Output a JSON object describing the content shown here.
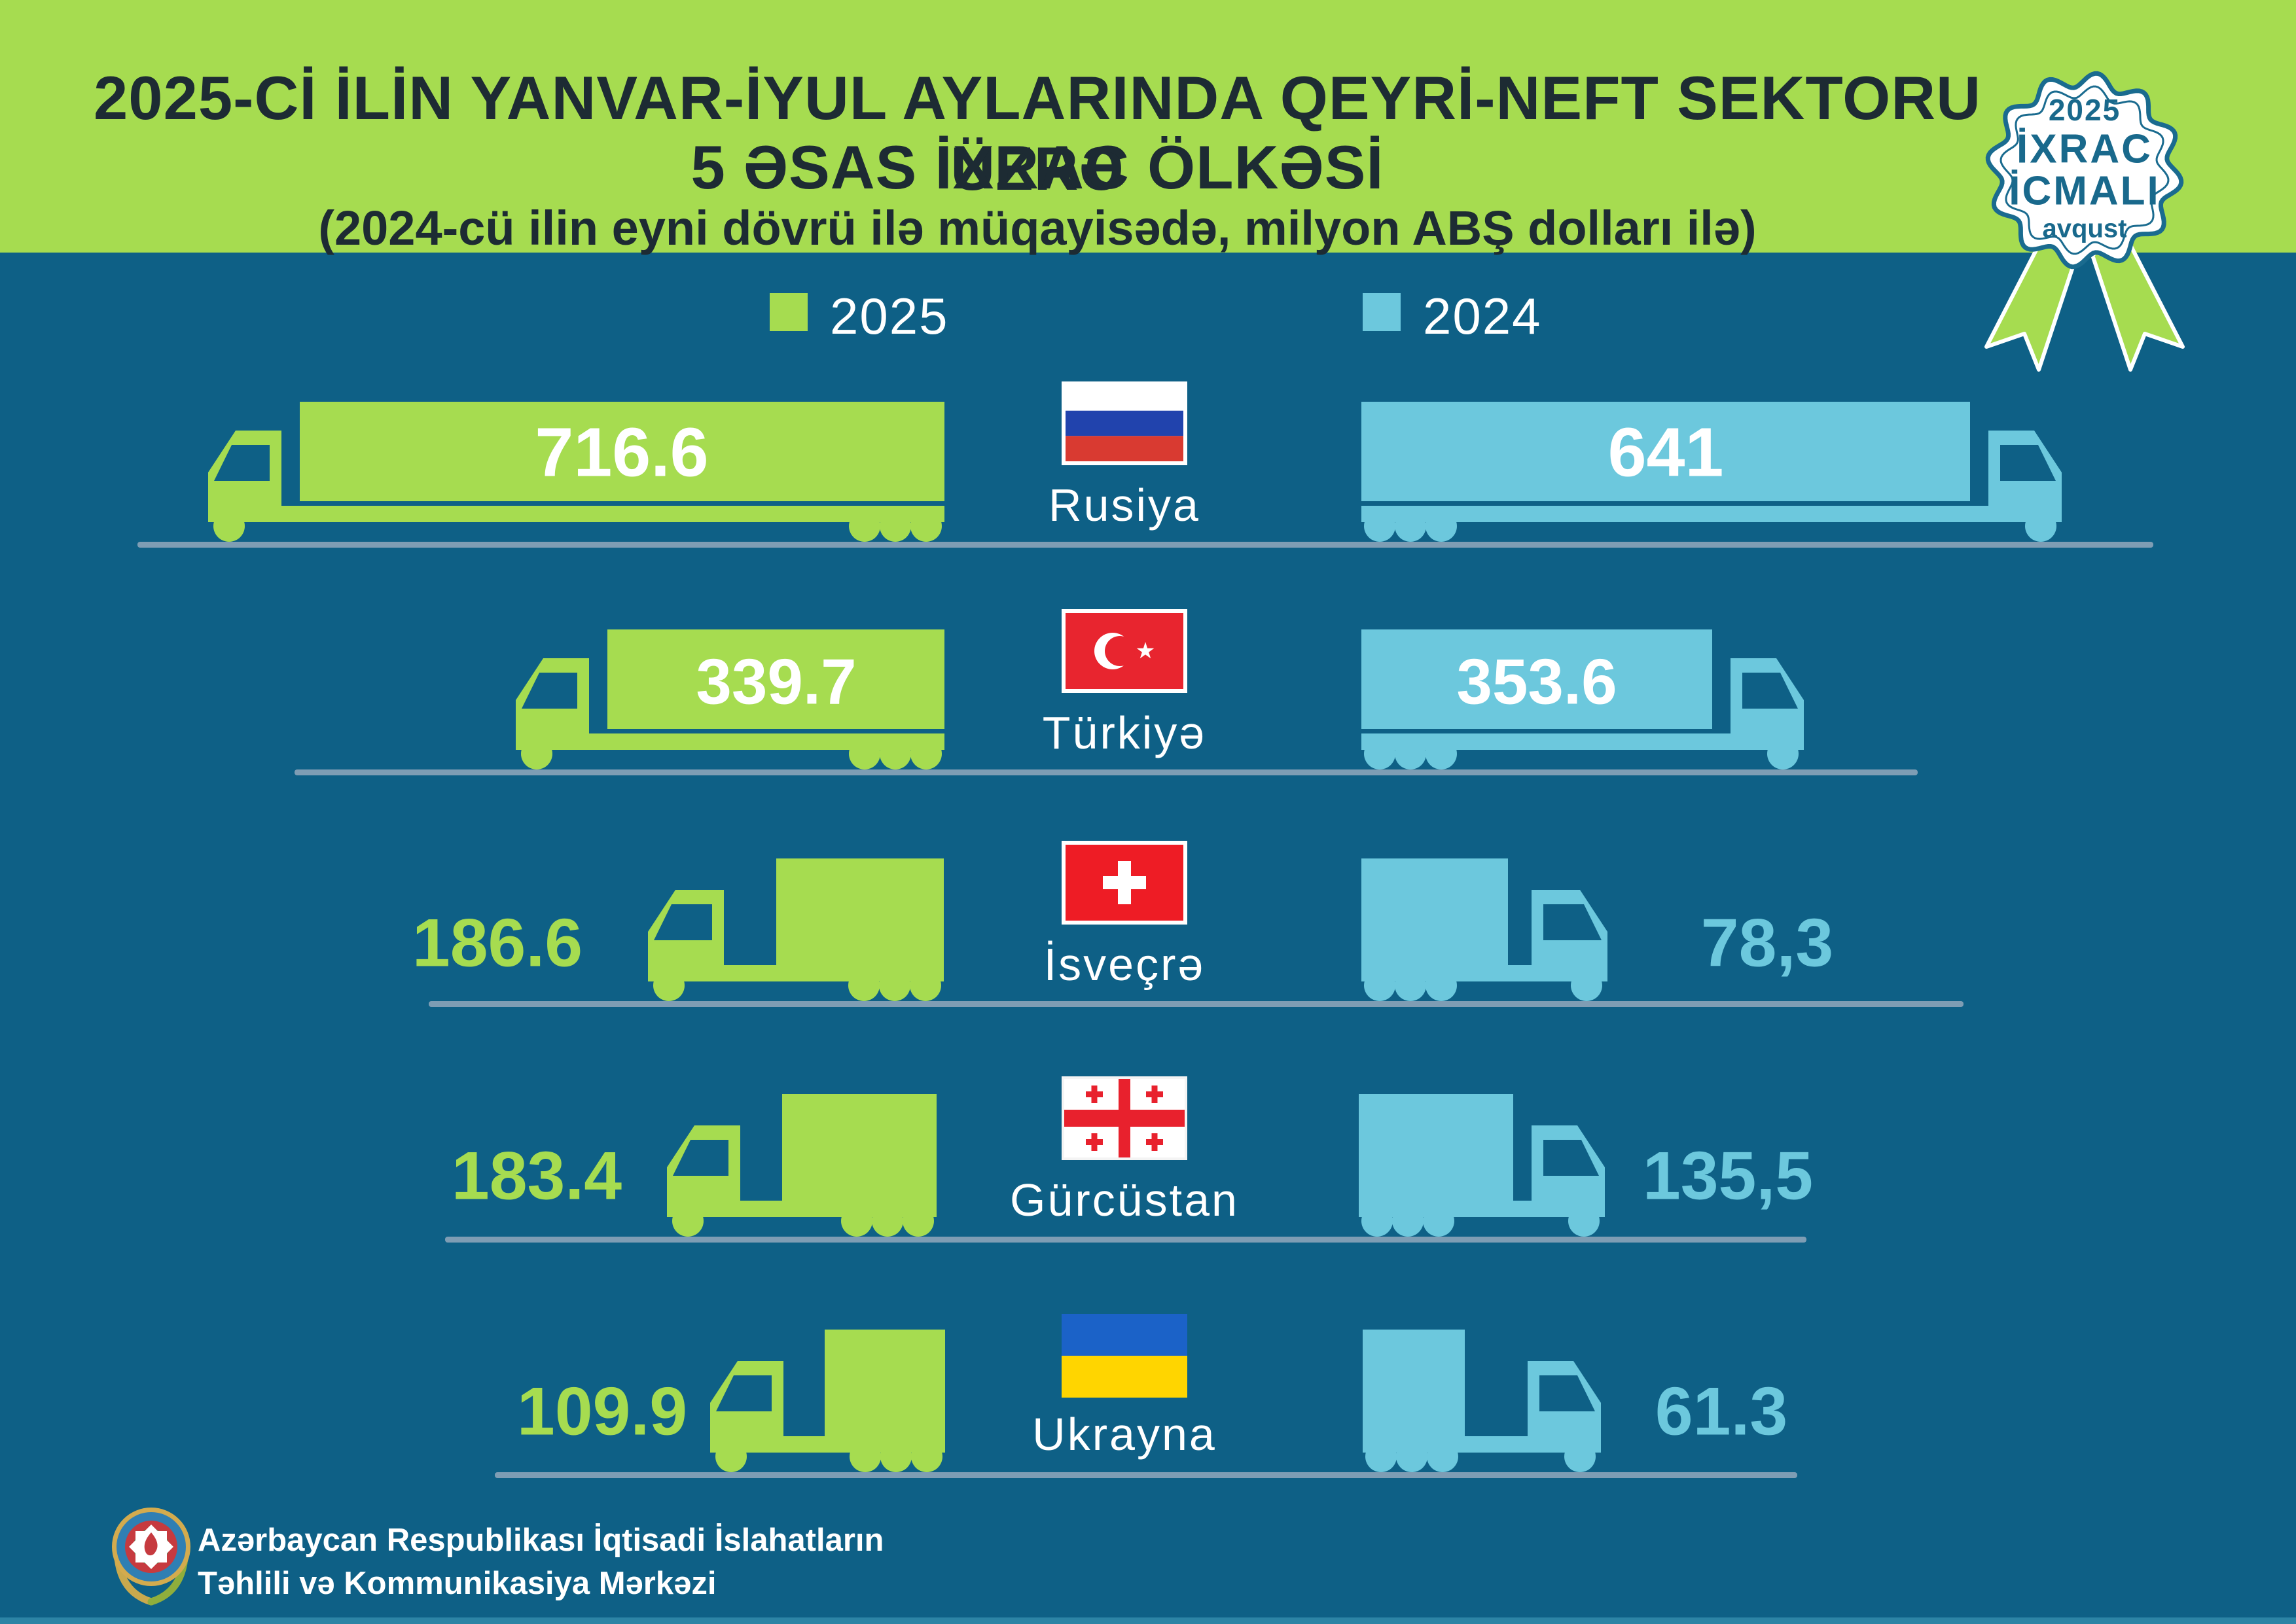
{
  "header": {
    "title_line1": "2025-Cİ İLİN YANVAR-İYUL AYLARINDA QEYRİ-NEFT SEKTORU ÜZRƏ",
    "title_line2": "5 ƏSAS İXRAC ÖLKƏSİ",
    "title_line3": "(2024-cü ilin eyni dövrü ilə müqayisədə, milyon ABŞ dolları ilə)"
  },
  "badge": {
    "year": "2025",
    "line1": "İXRAC",
    "line2": "İCMALI",
    "month": "avqust"
  },
  "legend": {
    "item_2025": {
      "label": "2025",
      "color": "#a6dc50"
    },
    "item_2024": {
      "label": "2024",
      "color": "#6cc8dd"
    }
  },
  "rows": [
    {
      "country": "Rusiya",
      "value_2025": "716.6",
      "value_2024": "641"
    },
    {
      "country": "Türkiyə",
      "value_2025": "339.7",
      "value_2024": "353.6"
    },
    {
      "country": "İsveçrə",
      "value_2025": "186.6",
      "value_2024": "78,3"
    },
    {
      "country": "Gürcüstan",
      "value_2025": "183.4",
      "value_2024": "135,5"
    },
    {
      "country": "Ukrayna",
      "value_2025": "109.9",
      "value_2024": "61.3"
    }
  ],
  "footer": {
    "org_line1": "Azərbaycan Respublikası İqtisadi İslahatların",
    "org_line2": "Təhlili və Kommunikasiya Mərkəzi"
  },
  "colors": {
    "background": "#0e6086",
    "header_green": "#a6dc50",
    "truck_green": "#a6dc50",
    "truck_blue": "#6cc8dd",
    "road": "#7e9db4",
    "title_ink": "#1d2b33",
    "badge_teal": "#19698c"
  },
  "chart_data": {
    "type": "bar",
    "title": "2025-Cİ İLİN YANVAR-İYUL AYLARINDA QEYRİ-NEFT SEKTORU ÜZRƏ 5 ƏSAS İXRAC ÖLKƏSİ",
    "subtitle": "(2024-cü ilin eyni dövrü ilə müqayisədə, milyon ABŞ dolları ilə)",
    "categories": [
      "Rusiya",
      "Türkiyə",
      "İsveçrə",
      "Gürcüstan",
      "Ukrayna"
    ],
    "series": [
      {
        "name": "2025",
        "values": [
          716.6,
          339.7,
          186.6,
          183.4,
          109.9
        ]
      },
      {
        "name": "2024",
        "values": [
          641,
          353.6,
          78.3,
          135.5,
          61.3
        ]
      }
    ],
    "unit": "milyon ABŞ dolları",
    "legend_position": "top",
    "grid": false,
    "pictogram": "truck"
  }
}
